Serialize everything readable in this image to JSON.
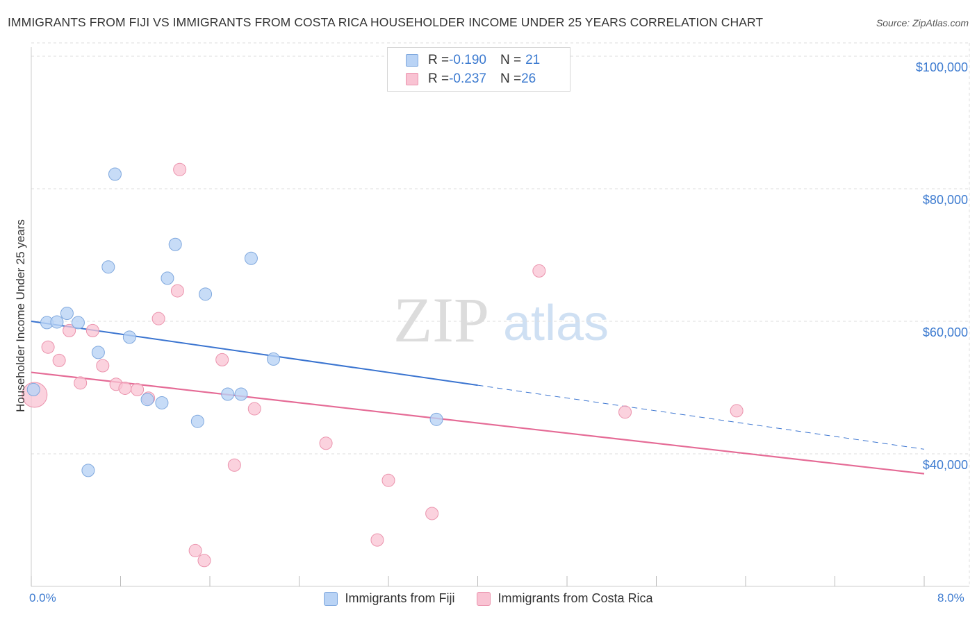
{
  "header": {
    "title": "IMMIGRANTS FROM FIJI VS IMMIGRANTS FROM COSTA RICA HOUSEHOLDER INCOME UNDER 25 YEARS CORRELATION CHART",
    "source": "Source: ZipAtlas.com"
  },
  "watermark": {
    "zip": "ZIP",
    "atlas": "atlas"
  },
  "colors": {
    "fiji_fill": "#b9d3f5",
    "fiji_stroke": "#7fa8de",
    "fiji_line": "#3a74d0",
    "cr_fill": "#f9c3d3",
    "cr_stroke": "#eb93ad",
    "cr_line": "#e56b96",
    "tick_label": "#3d7bd0",
    "grid": "#dddddd"
  },
  "stats": [
    {
      "r_label": "R = ",
      "r_value": "-0.190",
      "n_label": "N = ",
      "n_value": "21"
    },
    {
      "r_label": "R = ",
      "r_value": "-0.237",
      "n_label": "N = ",
      "n_value": "26"
    }
  ],
  "chart_data": {
    "type": "scatter",
    "title": "IMMIGRANTS FROM FIJI VS IMMIGRANTS FROM COSTA RICA HOUSEHOLDER INCOME UNDER 25 YEARS CORRELATION CHART",
    "xlabel": "",
    "ylabel": "Householder Income Under 25 years",
    "xlim": [
      0,
      8
    ],
    "ylim": [
      20000,
      102000
    ],
    "x_tick_labels": [
      "0.0%",
      "8.0%"
    ],
    "y_ticks": [
      40000,
      60000,
      80000,
      100000
    ],
    "y_tick_labels": [
      "$40,000",
      "$60,000",
      "$80,000",
      "$100,000"
    ],
    "grid": true,
    "legend_position": "bottom",
    "series": [
      {
        "name": "Immigrants from Fiji",
        "r": -0.19,
        "n": 21,
        "trend": {
          "x0": 0,
          "y0": 60000,
          "x1": 8,
          "y1": 40700,
          "solid_until_x": 4.0
        },
        "points": [
          {
            "x": 0.02,
            "y": 49700,
            "big": false
          },
          {
            "x": 0.14,
            "y": 59800,
            "big": false
          },
          {
            "x": 0.23,
            "y": 59900,
            "big": false
          },
          {
            "x": 0.32,
            "y": 61200,
            "big": false
          },
          {
            "x": 0.42,
            "y": 59800,
            "big": false
          },
          {
            "x": 0.51,
            "y": 37500,
            "big": false
          },
          {
            "x": 0.6,
            "y": 55300,
            "big": false
          },
          {
            "x": 0.69,
            "y": 68200,
            "big": false
          },
          {
            "x": 0.75,
            "y": 82200,
            "big": false
          },
          {
            "x": 0.88,
            "y": 57600,
            "big": false
          },
          {
            "x": 1.04,
            "y": 48200,
            "big": false
          },
          {
            "x": 1.17,
            "y": 47700,
            "big": false
          },
          {
            "x": 1.22,
            "y": 66500,
            "big": false
          },
          {
            "x": 1.29,
            "y": 71600,
            "big": false
          },
          {
            "x": 1.49,
            "y": 44900,
            "big": false
          },
          {
            "x": 1.56,
            "y": 64100,
            "big": false
          },
          {
            "x": 1.76,
            "y": 49000,
            "big": false
          },
          {
            "x": 1.88,
            "y": 49000,
            "big": false
          },
          {
            "x": 1.97,
            "y": 69500,
            "big": false
          },
          {
            "x": 2.17,
            "y": 54300,
            "big": false
          },
          {
            "x": 3.63,
            "y": 45200,
            "big": false
          }
        ]
      },
      {
        "name": "Immigrants from Costa Rica",
        "r": -0.237,
        "n": 26,
        "trend": {
          "x0": 0,
          "y0": 52300,
          "x1": 8,
          "y1": 37000
        },
        "points": [
          {
            "x": 0.03,
            "y": 48900,
            "big": true
          },
          {
            "x": 0.15,
            "y": 56100,
            "big": false
          },
          {
            "x": 0.25,
            "y": 54100,
            "big": false
          },
          {
            "x": 0.44,
            "y": 50700,
            "big": false
          },
          {
            "x": 0.34,
            "y": 58600,
            "big": false
          },
          {
            "x": 0.55,
            "y": 58600,
            "big": false
          },
          {
            "x": 0.64,
            "y": 53300,
            "big": false
          },
          {
            "x": 0.76,
            "y": 50500,
            "big": false
          },
          {
            "x": 0.84,
            "y": 49900,
            "big": false
          },
          {
            "x": 0.95,
            "y": 49700,
            "big": false
          },
          {
            "x": 1.05,
            "y": 48400,
            "big": false
          },
          {
            "x": 1.14,
            "y": 60400,
            "big": false
          },
          {
            "x": 1.31,
            "y": 64600,
            "big": false
          },
          {
            "x": 1.33,
            "y": 82900,
            "big": false
          },
          {
            "x": 1.47,
            "y": 25400,
            "big": false
          },
          {
            "x": 1.55,
            "y": 23900,
            "big": false
          },
          {
            "x": 1.71,
            "y": 54200,
            "big": false
          },
          {
            "x": 1.82,
            "y": 38300,
            "big": false
          },
          {
            "x": 2.0,
            "y": 46800,
            "big": false
          },
          {
            "x": 2.64,
            "y": 41600,
            "big": false
          },
          {
            "x": 3.2,
            "y": 36000,
            "big": false
          },
          {
            "x": 3.59,
            "y": 31000,
            "big": false
          },
          {
            "x": 3.1,
            "y": 27000,
            "big": false
          },
          {
            "x": 4.55,
            "y": 67600,
            "big": false
          },
          {
            "x": 5.32,
            "y": 46300,
            "big": false
          },
          {
            "x": 6.32,
            "y": 46500,
            "big": false
          }
        ]
      }
    ]
  }
}
